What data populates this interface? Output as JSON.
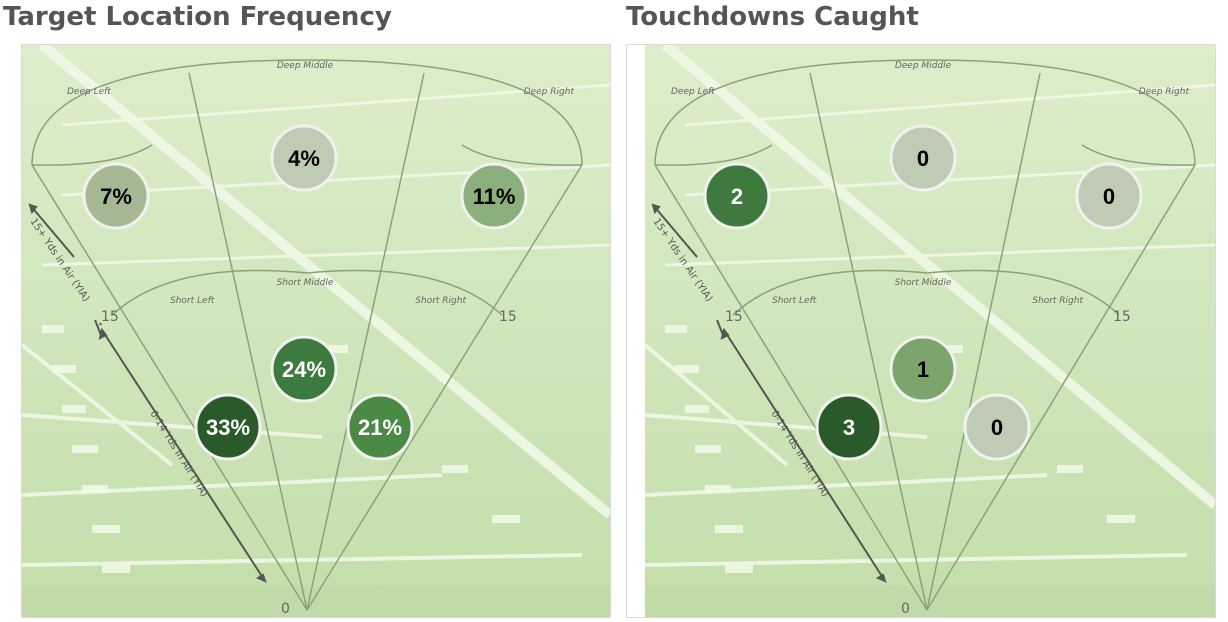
{
  "panels": [
    {
      "title": "Target Location Frequency",
      "labels": {
        "deep_left": "Deep Left",
        "deep_middle": "Deep Middle",
        "deep_right": "Deep Right",
        "short_left": "Short Left",
        "short_middle": "Short Middle",
        "short_right": "Short Right",
        "deep_axis": "15+ Yds in Air (YIA)",
        "short_axis": "0-14 Yds in Air (YIA)",
        "tick_15_left": "15",
        "tick_15_right": "15",
        "tick_0": "0"
      },
      "zones": [
        {
          "zone": "deep_left",
          "label": "7%",
          "value": 7,
          "color": "#a4b894",
          "text_color": "#000000"
        },
        {
          "zone": "deep_middle",
          "label": "4%",
          "value": 4,
          "color": "#bfcbb5",
          "text_color": "#000000"
        },
        {
          "zone": "deep_right",
          "label": "11%",
          "value": 11,
          "color": "#8bb07d",
          "text_color": "#000000"
        },
        {
          "zone": "short_left",
          "label": "33%",
          "value": 33,
          "color": "#2a5a2a",
          "text_color": "#ffffff"
        },
        {
          "zone": "short_middle",
          "label": "24%",
          "value": 24,
          "color": "#3d7a3d",
          "text_color": "#ffffff"
        },
        {
          "zone": "short_right",
          "label": "21%",
          "value": 21,
          "color": "#4a8a45",
          "text_color": "#ffffff"
        }
      ]
    },
    {
      "title": "Touchdowns Caught",
      "labels": {
        "deep_left": "Deep Left",
        "deep_middle": "Deep Middle",
        "deep_right": "Deep Right",
        "short_left": "Short Left",
        "short_middle": "Short Middle",
        "short_right": "Short Right",
        "deep_axis": "15+ Yds in Air (YIA)",
        "short_axis": "0-14 Yds in Air (YIA)",
        "tick_15_left": "15",
        "tick_15_right": "15",
        "tick_0": "0"
      },
      "zones": [
        {
          "zone": "deep_left",
          "label": "2",
          "value": 2,
          "color": "#3e7a3e",
          "text_color": "#ffffff"
        },
        {
          "zone": "deep_middle",
          "label": "0",
          "value": 0,
          "color": "#bfcbb5",
          "text_color": "#000000"
        },
        {
          "zone": "deep_right",
          "label": "0",
          "value": 0,
          "color": "#bfcbb5",
          "text_color": "#000000"
        },
        {
          "zone": "short_left",
          "label": "3",
          "value": 3,
          "color": "#2a5a2a",
          "text_color": "#ffffff"
        },
        {
          "zone": "short_middle",
          "label": "1",
          "value": 1,
          "color": "#7ba56c",
          "text_color": "#000000"
        },
        {
          "zone": "short_right",
          "label": "0",
          "value": 0,
          "color": "#bfcbb5",
          "text_color": "#000000"
        }
      ]
    }
  ],
  "colors": {
    "field_light": "#d6ebc4",
    "field_mid": "#c6e0ae",
    "field_lines": "#f4fbee",
    "zone_lines": "#8aa27c"
  }
}
